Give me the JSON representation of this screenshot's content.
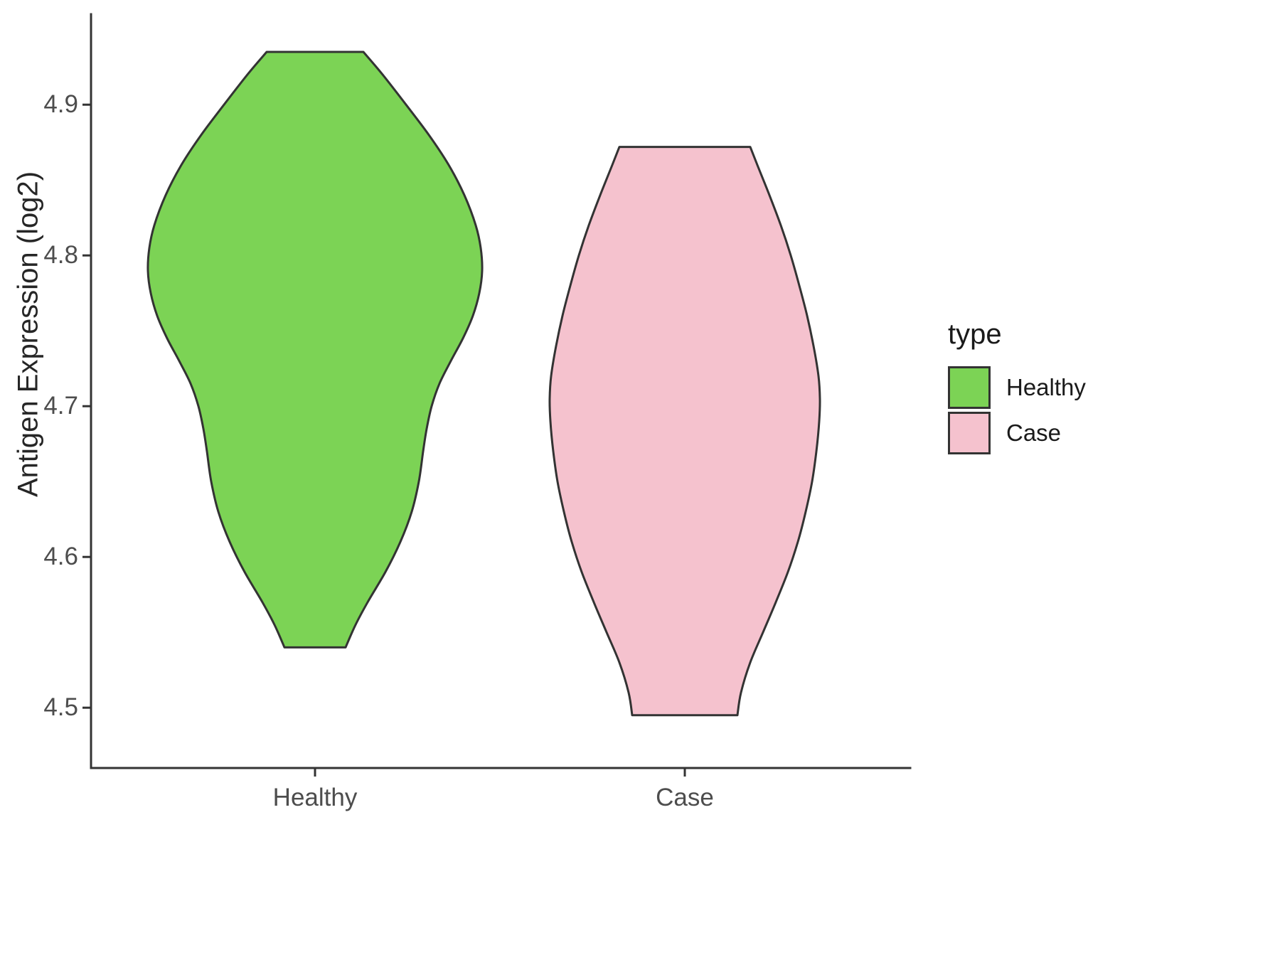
{
  "figure": {
    "background": "#FFFFFF",
    "axis_color": "#333333",
    "tick_text_color": "#4d4d4d",
    "title_text_color": "#262626"
  },
  "legend": {
    "title": "type",
    "items": [
      {
        "label": "Healthy",
        "color": "#7CD355"
      },
      {
        "label": "Case",
        "color": "#F5C2CE"
      }
    ]
  },
  "chart_data": {
    "type": "violin",
    "title": "",
    "xlabel": "",
    "ylabel": "Antigen Expression (log2)",
    "legend_title": "type",
    "categories": [
      "Healthy",
      "Case"
    ],
    "y_ticks": [
      4.5,
      4.6,
      4.7,
      4.8,
      4.9
    ],
    "ylim": [
      4.46,
      4.96
    ],
    "grid": false,
    "legend_position": "right",
    "series": [
      {
        "name": "Healthy",
        "fill": "#7CD355",
        "stroke": "#333333",
        "value_range": [
          4.54,
          4.935
        ],
        "widest_at": 4.79,
        "profile_value_halfwidthpx": [
          [
            4.935,
            68
          ],
          [
            4.92,
            95
          ],
          [
            4.9,
            128
          ],
          [
            4.88,
            160
          ],
          [
            4.86,
            188
          ],
          [
            4.84,
            210
          ],
          [
            4.82,
            226
          ],
          [
            4.805,
            233
          ],
          [
            4.79,
            235
          ],
          [
            4.775,
            231
          ],
          [
            4.76,
            222
          ],
          [
            4.745,
            208
          ],
          [
            4.73,
            191
          ],
          [
            4.715,
            175
          ],
          [
            4.7,
            164
          ],
          [
            4.685,
            157
          ],
          [
            4.67,
            152
          ],
          [
            4.65,
            146
          ],
          [
            4.63,
            136
          ],
          [
            4.61,
            120
          ],
          [
            4.59,
            99
          ],
          [
            4.57,
            74
          ],
          [
            4.555,
            57
          ],
          [
            4.54,
            43
          ]
        ]
      },
      {
        "name": "Case",
        "fill": "#F5C2CE",
        "stroke": "#333333",
        "value_range": [
          4.495,
          4.872
        ],
        "widest_at": 4.705,
        "profile_value_halfwidthpx": [
          [
            4.872,
            92
          ],
          [
            4.86,
            102
          ],
          [
            4.84,
            119
          ],
          [
            4.82,
            135
          ],
          [
            4.8,
            149
          ],
          [
            4.78,
            161
          ],
          [
            4.76,
            172
          ],
          [
            4.74,
            181
          ],
          [
            4.72,
            188
          ],
          [
            4.705,
            190
          ],
          [
            4.69,
            189
          ],
          [
            4.67,
            185
          ],
          [
            4.65,
            179
          ],
          [
            4.63,
            170
          ],
          [
            4.61,
            159
          ],
          [
            4.59,
            145
          ],
          [
            4.57,
            128
          ],
          [
            4.55,
            110
          ],
          [
            4.53,
            92
          ],
          [
            4.51,
            79
          ],
          [
            4.495,
            74
          ]
        ]
      }
    ]
  }
}
